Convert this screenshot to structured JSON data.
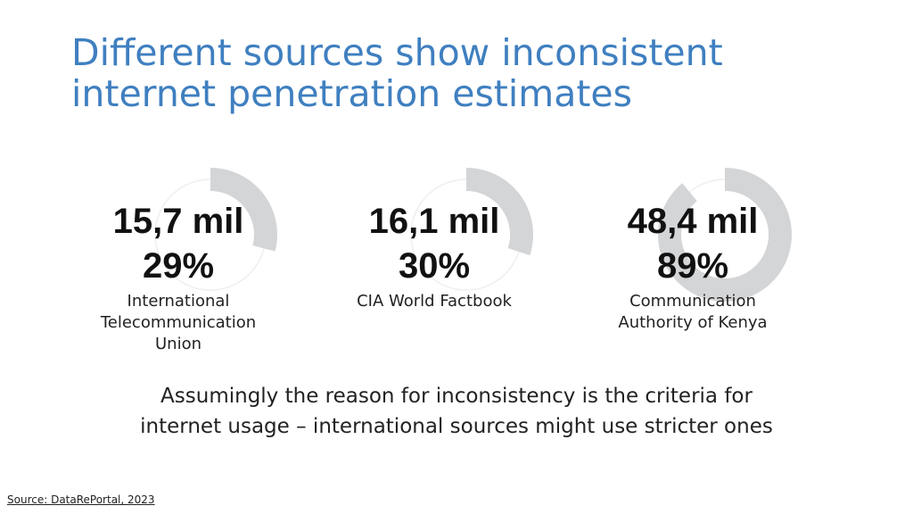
{
  "slide": {
    "title_lines": [
      "Different sources show inconsistent",
      "internet penetration estimates"
    ],
    "note_lines": [
      "Assumingly the reason for inconsistency is the criteria for",
      "internet usage – international sources might use stricter ones"
    ],
    "source": "Source: DataRePortal, 2023"
  },
  "colors": {
    "title": "#3f7fc0",
    "ring_fill": "#d4d5d7",
    "ring_track": "#efefef"
  },
  "chart_data": {
    "type": "pie",
    "series": [
      {
        "name": "International Telecommunication Union",
        "users": "15,7 mil",
        "percent_label": "29%",
        "value": 29,
        "label_lines": [
          "International",
          "Telecommunication",
          "Union"
        ]
      },
      {
        "name": "CIA World Factbook",
        "users": "16,1 mil",
        "percent_label": "30%",
        "value": 30,
        "label_lines": [
          "CIA World Factbook"
        ]
      },
      {
        "name": "Communication Authority of Kenya",
        "users": "48,4 mil",
        "percent_label": "89%",
        "value": 89,
        "label_lines": [
          "Communication",
          "Authority of Kenya"
        ]
      }
    ]
  }
}
